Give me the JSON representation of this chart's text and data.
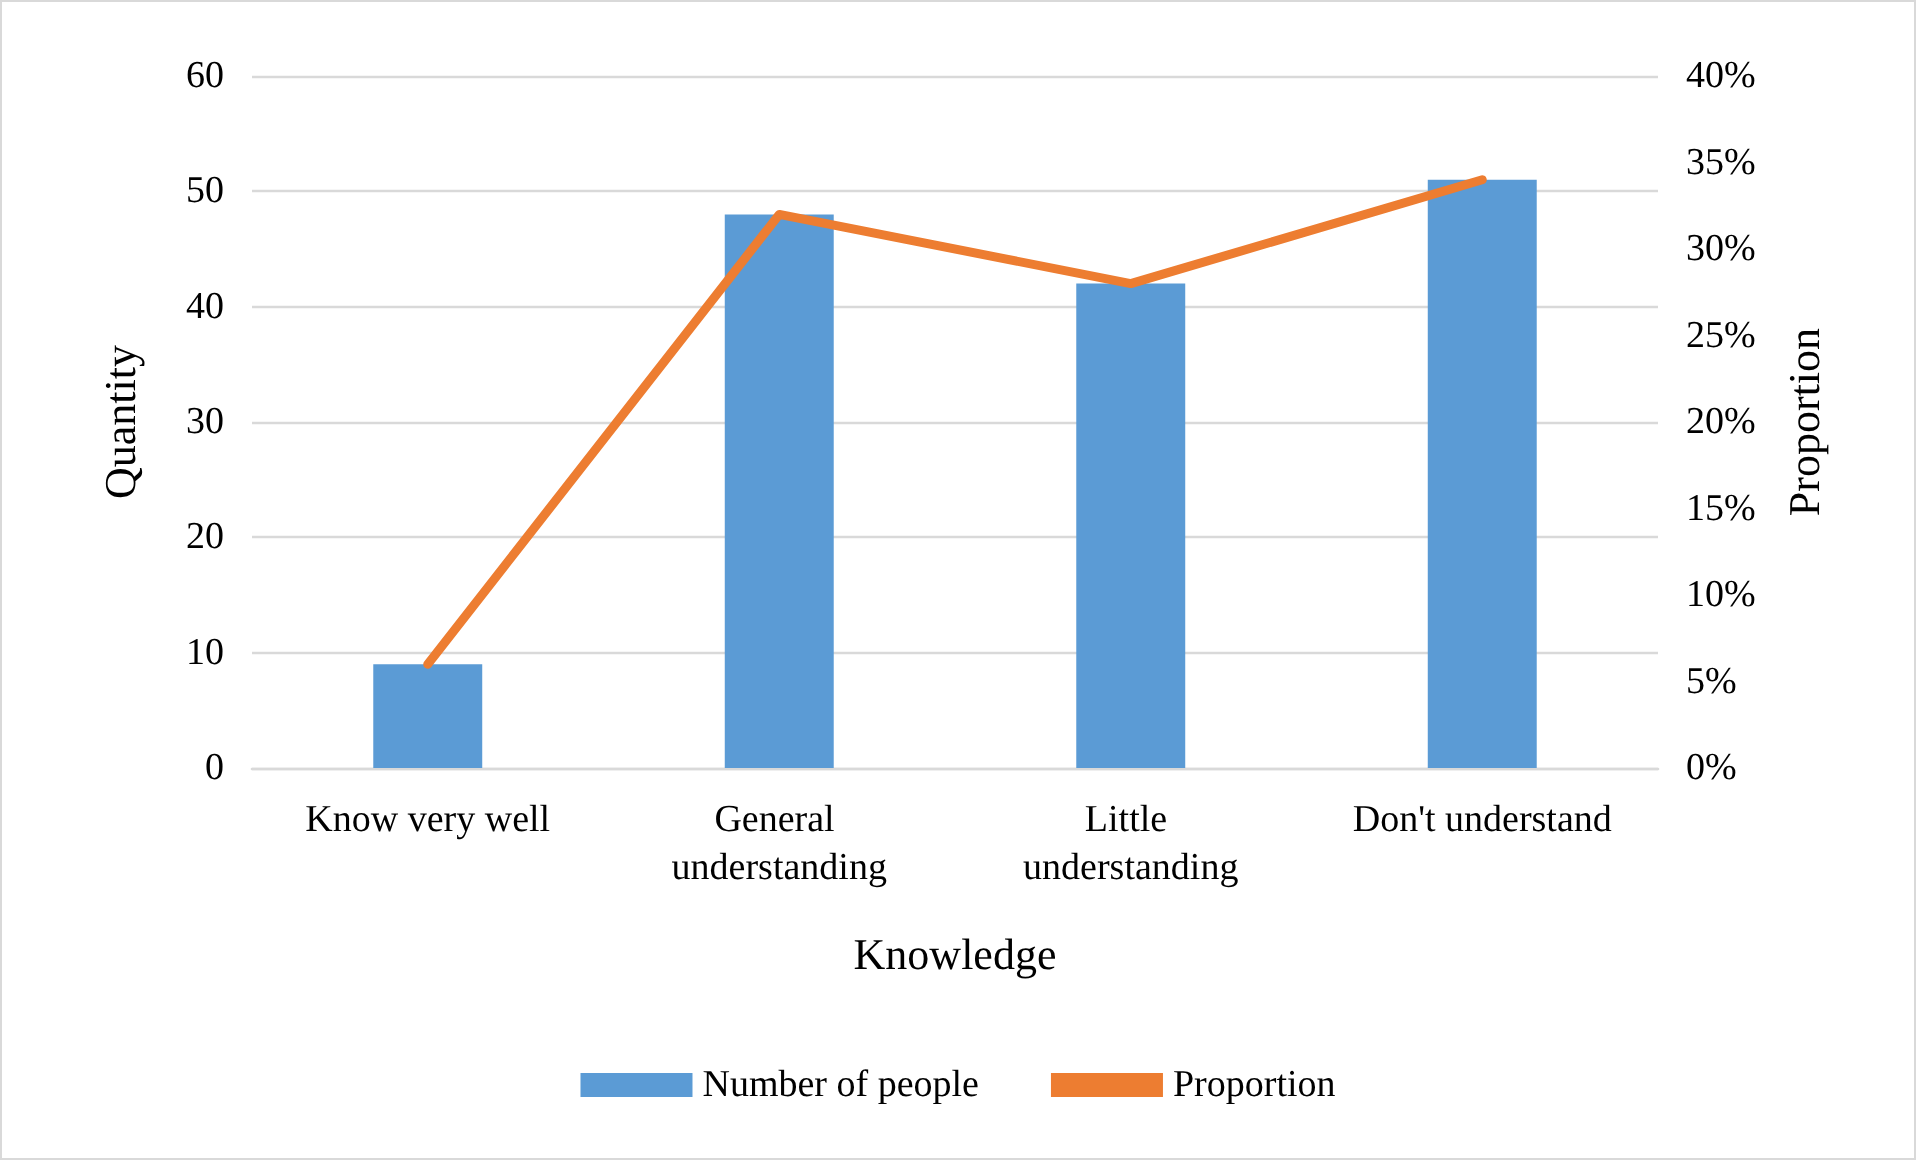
{
  "chart_data": {
    "type": "bar",
    "xlabel": "Knowledge",
    "ylabel": "Quantity",
    "y2label": "Proportion",
    "categories": [
      "Know very well",
      "General understanding",
      "Little understanding",
      "Don't understand"
    ],
    "series": [
      {
        "name": "Number of people",
        "color": "#5b9bd5",
        "values": [
          9,
          48,
          42,
          51
        ]
      },
      {
        "name": "Proportion",
        "type": "line",
        "axis": "y2",
        "color": "#ed7d31",
        "values": [
          6,
          32,
          28,
          34
        ]
      }
    ],
    "ylim": [
      0,
      60
    ],
    "yticks": [
      0,
      10,
      20,
      30,
      40,
      50,
      60
    ],
    "y2lim": [
      0,
      40
    ],
    "y2ticks": [
      {
        "value": 0,
        "label": "0%"
      },
      {
        "value": 5,
        "label": "5%"
      },
      {
        "value": 10,
        "label": "10%"
      },
      {
        "value": 15,
        "label": "15%"
      },
      {
        "value": 20,
        "label": "20%"
      },
      {
        "value": 25,
        "label": "25%"
      },
      {
        "value": 30,
        "label": "30%"
      },
      {
        "value": 35,
        "label": "35%"
      },
      {
        "value": 40,
        "label": "40%"
      }
    ],
    "grid": "y",
    "legend": "bottom",
    "marker": "none",
    "line_style": "solid"
  }
}
